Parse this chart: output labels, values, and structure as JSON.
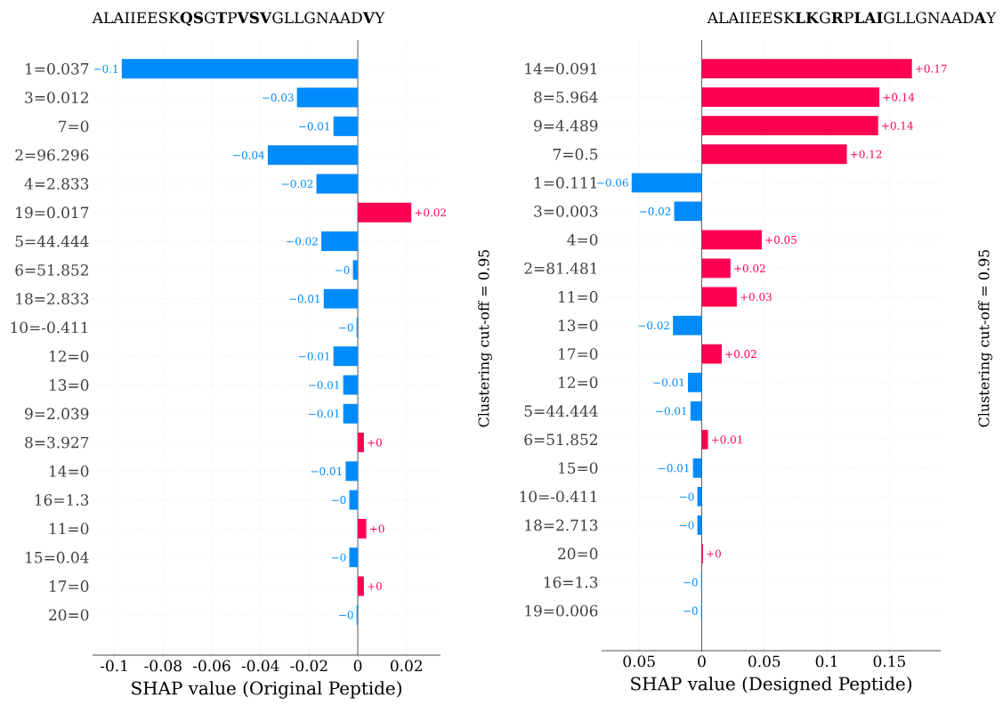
{
  "chart_data": [
    {
      "type": "bar",
      "orientation": "horizontal",
      "title": "ALAIIEESK**QS**G**T**P**VSV**GLLGNAAD**V**Y",
      "xlabel": "SHAP value (Original Peptide)",
      "categories": [
        "1=0.037",
        "3=0.012",
        "7=0",
        "2=96.296",
        "4=2.833",
        "19=0.017",
        "5=44.444",
        "6=51.852",
        "18=2.833",
        "10=-0.411",
        "12=0",
        "13=0",
        "9=2.039",
        "8=3.927",
        "14=0",
        "16=1.3",
        "11=0",
        "15=0.04",
        "17=0",
        "20=0"
      ],
      "values": [
        -0.097,
        -0.025,
        -0.01,
        -0.037,
        -0.017,
        0.022,
        -0.015,
        -0.002,
        -0.014,
        -0.0005,
        -0.01,
        -0.006,
        -0.006,
        0.0025,
        -0.005,
        -0.0035,
        0.0035,
        -0.0035,
        0.0025,
        -0.0005
      ],
      "colors": [
        "#008bfb",
        "#008bfb",
        "#008bfb",
        "#008bfb",
        "#008bfb",
        "#ff0051",
        "#008bfb",
        "#008bfb",
        "#008bfb",
        "#008bfb",
        "#008bfb",
        "#008bfb",
        "#008bfb",
        "#ff0051",
        "#008bfb",
        "#008bfb",
        "#ff0051",
        "#008bfb",
        "#ff0051",
        "#008bfb"
      ],
      "value_labels": [
        "−0.1",
        "−0.03",
        "−0.01",
        "−0.04",
        "−0.02",
        "+0.02",
        "−0.02",
        "−0",
        "−0.01",
        "−0",
        "−0.01",
        "−0.01",
        "−0.01",
        "+0",
        "−0.01",
        "−0",
        "+0",
        "−0",
        "+0",
        "−0"
      ],
      "xlim": [
        -0.109,
        0.034
      ],
      "xticks": [
        -0.1,
        -0.08,
        -0.06,
        -0.04,
        -0.02,
        0,
        0.02
      ],
      "grid": true,
      "ref_lines": [
        {
          "axis": "x",
          "value": 0,
          "color": "#333333"
        }
      ],
      "annotations": [
        "Clustering cut-off = 0.95"
      ]
    },
    {
      "type": "bar",
      "orientation": "horizontal",
      "title": "ALAIIEESK**LK**G**R**P**LAI**GLLGNAAD**A**Y",
      "xlabel": "SHAP value (Designed Peptide)",
      "categories": [
        "14=0.091",
        "8=5.964",
        "9=4.489",
        "7=0.5",
        "1=0.111",
        "3=0.003",
        "4=0",
        "2=81.481",
        "11=0",
        "13=0",
        "17=0",
        "12=0",
        "5=44.444",
        "6=51.852",
        "15=0",
        "10=-0.411",
        "18=2.713",
        "20=0",
        "16=1.3",
        "19=0.006"
      ],
      "values": [
        0.168,
        0.142,
        0.141,
        0.116,
        -0.056,
        -0.022,
        0.048,
        0.023,
        0.028,
        -0.023,
        0.016,
        -0.011,
        -0.009,
        0.005,
        -0.007,
        -0.0035,
        -0.0035,
        0.001,
        -0.0005,
        -0.0005
      ],
      "colors": [
        "#ff0051",
        "#ff0051",
        "#ff0051",
        "#ff0051",
        "#008bfb",
        "#008bfb",
        "#ff0051",
        "#ff0051",
        "#ff0051",
        "#008bfb",
        "#ff0051",
        "#008bfb",
        "#008bfb",
        "#ff0051",
        "#008bfb",
        "#008bfb",
        "#008bfb",
        "#ff0051",
        "#008bfb",
        "#008bfb"
      ],
      "value_labels": [
        "+0.17",
        "+0.14",
        "+0.14",
        "+0.12",
        "−0.06",
        "−0.02",
        "+0.05",
        "+0.02",
        "+0.03",
        "−0.02",
        "+0.02",
        "−0.01",
        "−0.01",
        "+0.01",
        "−0.01",
        "−0",
        "−0",
        "+0",
        "−0",
        "−0"
      ],
      "xlim": [
        -0.08,
        0.191
      ],
      "xticks": [
        {
          "value": -0.05,
          "label": "0.05"
        },
        0,
        0.05,
        0.1,
        0.15
      ],
      "grid": true,
      "ref_lines": [
        {
          "axis": "x",
          "value": 0,
          "color": "#333333"
        }
      ],
      "annotations": [
        "Clustering cut-off = 0.95"
      ]
    }
  ]
}
